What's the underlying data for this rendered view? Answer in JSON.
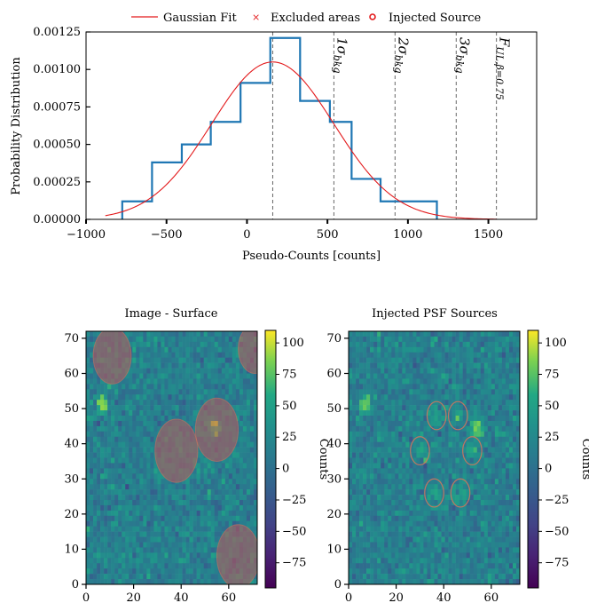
{
  "legend": [
    {
      "label": "Gaussian Fit",
      "marker": "line",
      "color": "#e31a1c"
    },
    {
      "label": "Excluded areas",
      "marker": "x",
      "color": "#e31a1c"
    },
    {
      "label": "Injected Source",
      "marker": "circle",
      "color": "#e31a1c"
    }
  ],
  "colors": {
    "histogram": "#1f77b4",
    "gaussian": "#e31a1c",
    "markers": "#555555",
    "region_fill": "#c05a5a",
    "region_edge": "#d9745a"
  },
  "chart_data": [
    {
      "type": "histogram",
      "xlabel": "Pseudo-Counts [counts]",
      "ylabel": "Probability Distribution",
      "xlim": [
        -1000,
        1800
      ],
      "ylim": [
        0,
        0.00125
      ],
      "xticks": [
        -1000,
        -500,
        0,
        500,
        1000,
        1500
      ],
      "xtick_labels": [
        "−1000",
        "−500",
        "0",
        "500",
        "1000",
        "1500"
      ],
      "yticks": [
        0,
        0.00025,
        0.0005,
        0.00075,
        0.001,
        0.00125
      ],
      "ytick_labels": [
        "0.00000",
        "0.00025",
        "0.00050",
        "0.00075",
        "0.00100",
        "0.00125"
      ],
      "bin_edges": [
        -775,
        -590,
        -405,
        -225,
        -40,
        145,
        330,
        515,
        650,
        830,
        1180
      ],
      "bin_values": [
        0.00012,
        0.00038,
        0.0005,
        0.00065,
        0.00091,
        0.00121,
        0.00079,
        0.00065,
        0.00027,
        0.00012
      ],
      "gaussian_fit": {
        "mean": 160,
        "sigma": 380,
        "peak": 0.00105,
        "x_range": [
          -880,
          1550
        ]
      },
      "vertical_markers": [
        {
          "x": 160,
          "label": ""
        },
        {
          "x": 540,
          "label": "1σbkg",
          "main": "1σ",
          "sub": "bkg"
        },
        {
          "x": 920,
          "label": "2σbkg",
          "main": "2σ",
          "sub": "bkg"
        },
        {
          "x": 1300,
          "label": "3σbkg",
          "main": "3σ",
          "sub": "bkg"
        },
        {
          "x": 1550,
          "label": "F UL,β=0.75",
          "main": "F",
          "sub": "UL,β=0.75"
        }
      ],
      "grid": false
    },
    {
      "type": "heatmap",
      "title": "Image - Surface",
      "xlim": [
        0,
        72
      ],
      "ylim": [
        0,
        72
      ],
      "xticks": [
        0,
        20,
        40,
        60
      ],
      "yticks": [
        0,
        10,
        20,
        30,
        40,
        50,
        60,
        70
      ],
      "colorbar": {
        "label": "Counts",
        "range": [
          -95,
          110
        ],
        "ticks": [
          100,
          75,
          50,
          25,
          0,
          -25,
          -50,
          -75
        ],
        "tick_labels": [
          "100",
          "75",
          "50",
          "25",
          "0",
          "−25",
          "−50",
          "−75"
        ],
        "colormap": "viridis"
      },
      "excluded_regions": [
        {
          "cx": 11,
          "cy": 65,
          "r": 8
        },
        {
          "cx": 71,
          "cy": 67,
          "r": 7
        },
        {
          "cx": 55,
          "cy": 44,
          "r": 9
        },
        {
          "cx": 38,
          "cy": 38,
          "r": 9
        },
        {
          "cx": 64,
          "cy": 8,
          "r": 9
        }
      ],
      "bright_sources": [
        {
          "x": 54,
          "y": 45
        },
        {
          "x": 7,
          "y": 51
        }
      ]
    },
    {
      "type": "heatmap",
      "title": "Injected PSF Sources",
      "xlim": [
        0,
        72
      ],
      "ylim": [
        0,
        72
      ],
      "xticks": [
        0,
        20,
        40,
        60
      ],
      "yticks": [
        0,
        10,
        20,
        30,
        40,
        50,
        60,
        70
      ],
      "colorbar": {
        "label": "Counts",
        "range": [
          -95,
          110
        ],
        "ticks": [
          100,
          75,
          50,
          25,
          0,
          -25,
          -50,
          -75
        ],
        "tick_labels": [
          "100",
          "75",
          "50",
          "25",
          "0",
          "−25",
          "−50",
          "−75"
        ],
        "colormap": "viridis"
      },
      "injected_sources": [
        {
          "cx": 37,
          "cy": 48,
          "r": 4
        },
        {
          "cx": 46,
          "cy": 48,
          "r": 4
        },
        {
          "cx": 52,
          "cy": 38,
          "r": 4
        },
        {
          "cx": 30,
          "cy": 38,
          "r": 4
        },
        {
          "cx": 47,
          "cy": 26,
          "r": 4
        },
        {
          "cx": 36,
          "cy": 26,
          "r": 4
        }
      ],
      "bright_sources": [
        {
          "x": 54,
          "y": 45
        },
        {
          "x": 7,
          "y": 51
        }
      ]
    }
  ]
}
